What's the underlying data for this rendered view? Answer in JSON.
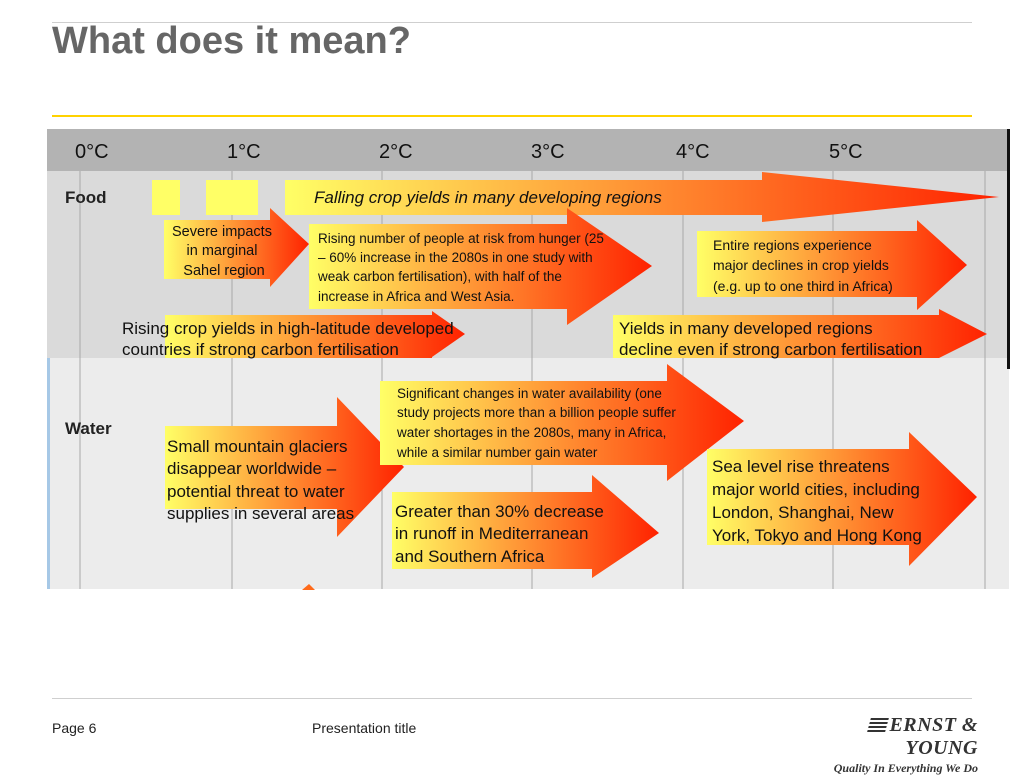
{
  "slide": {
    "title": "What does it mean?"
  },
  "footer": {
    "page": "Page 6",
    "presentation": "Presentation title"
  },
  "logo": {
    "name": "ERNST & YOUNG",
    "tagline": "Quality In Everything We Do"
  },
  "diagram": {
    "scale_labels": [
      "0°C",
      "1°C",
      "2°C",
      "3°C",
      "4°C",
      "5°C"
    ],
    "colors": {
      "arrow_start": "#ffff66",
      "arrow_end": "#ff2200",
      "header": "#b3b3b3",
      "food_band": "#dadada",
      "water_band": "#ececec"
    },
    "food": {
      "label": "Food",
      "falling_yields": "Falling crop yields in many developing regions",
      "severe_impacts": [
        "Severe impacts",
        "in marginal",
        "Sahel region"
      ],
      "rising_hunger": [
        "Rising number of people at risk from hunger (25",
        "– 60% increase in the 2080s in one study with",
        "weak carbon fertilisation), with half of the",
        "increase in Africa and West Asia."
      ],
      "entire_regions": [
        "Entire regions experience",
        "major declines in crop yields",
        "(e.g. up to one third in Africa)"
      ],
      "rising_yields": [
        "Rising crop yields in high-latitude developed",
        "countries if strong carbon fertilisation"
      ],
      "yields_decline": [
        "Yields in many developed regions",
        "decline even if strong carbon fertilisation"
      ]
    },
    "water": {
      "label": "Water",
      "glaciers": [
        "Small mountain glaciers",
        "disappear worldwide –",
        "potential threat to water",
        "supplies in several areas"
      ],
      "water_availability": [
        "Significant changes in water availability (one",
        "study projects more than a billion people suffer",
        "water shortages in the 2080s, many in Africa,",
        "while a similar number gain water"
      ],
      "runoff": [
        "Greater than 30% decrease",
        "in runoff in Mediterranean",
        "and Southern Africa"
      ],
      "sea_level": [
        "Sea level rise threatens",
        "major world cities, including",
        "London, Shanghai, New",
        "York, Tokyo and Hong Kong"
      ]
    }
  }
}
